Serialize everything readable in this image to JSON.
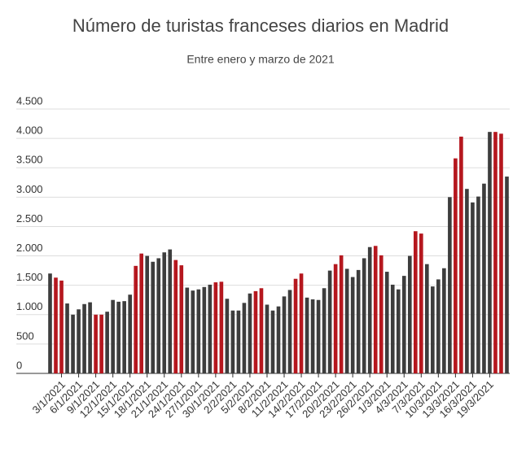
{
  "chart_data": {
    "type": "bar",
    "title": "Número de turistas franceses diarios en Madrid",
    "subtitle": "Entre enero y marzo de 2021",
    "categories": [
      null,
      null,
      "3/1/2021",
      null,
      null,
      "6/1/2021",
      null,
      null,
      "9/1/2021",
      null,
      null,
      "12/1/2021",
      null,
      null,
      "15/1/2021",
      null,
      null,
      "18/1/2021",
      null,
      null,
      "21/1/2021",
      null,
      null,
      "24/1/2021",
      null,
      null,
      "27/1/2021",
      null,
      null,
      "30/1/2021",
      null,
      null,
      "2/2/2021",
      null,
      null,
      "5/2/2021",
      null,
      null,
      "8/2/2021",
      null,
      null,
      "11/2/2021",
      null,
      null,
      "14/2/2021",
      null,
      null,
      "17/2/2021",
      null,
      null,
      "20/2/2021",
      null,
      null,
      "23/2/2021",
      null,
      null,
      "26/2/2021",
      null,
      null,
      "1/3/2021",
      null,
      null,
      "4/3/2021",
      null,
      null,
      "7/3/2021",
      null,
      null,
      "10/3/2021",
      null,
      null,
      "13/3/2021",
      null,
      null,
      "16/3/2021",
      null,
      null,
      "19/3/2021",
      null,
      null,
      null
    ],
    "values": [
      1700,
      1630,
      1580,
      1190,
      1000,
      1090,
      1180,
      1210,
      1000,
      1000,
      1050,
      1250,
      1220,
      1230,
      1340,
      1830,
      2040,
      2000,
      1900,
      1960,
      2060,
      2110,
      1930,
      1840,
      1460,
      1410,
      1430,
      1470,
      1510,
      1550,
      1560,
      1270,
      1070,
      1070,
      1200,
      1360,
      1400,
      1450,
      1170,
      1070,
      1140,
      1310,
      1420,
      1610,
      1700,
      1290,
      1260,
      1250,
      1450,
      1750,
      1860,
      2010,
      1780,
      1640,
      1760,
      1960,
      2150,
      2170,
      2010,
      1730,
      1510,
      1430,
      1660,
      2000,
      2420,
      2380,
      1860,
      1480,
      1600,
      1790,
      3000,
      3660,
      4030,
      3140,
      2910,
      3010,
      3230,
      4110,
      4110,
      4080,
      3350
    ],
    "colors": [
      "#3d3d3d",
      "#b5171e",
      "#b5171e",
      "#3d3d3d",
      "#3d3d3d",
      "#3d3d3d",
      "#3d3d3d",
      "#3d3d3d",
      "#b5171e",
      "#b5171e",
      "#3d3d3d",
      "#3d3d3d",
      "#3d3d3d",
      "#3d3d3d",
      "#3d3d3d",
      "#b5171e",
      "#b5171e",
      "#3d3d3d",
      "#3d3d3d",
      "#3d3d3d",
      "#3d3d3d",
      "#3d3d3d",
      "#b5171e",
      "#b5171e",
      "#3d3d3d",
      "#3d3d3d",
      "#3d3d3d",
      "#3d3d3d",
      "#3d3d3d",
      "#b5171e",
      "#b5171e",
      "#3d3d3d",
      "#3d3d3d",
      "#3d3d3d",
      "#3d3d3d",
      "#3d3d3d",
      "#b5171e",
      "#b5171e",
      "#3d3d3d",
      "#3d3d3d",
      "#3d3d3d",
      "#3d3d3d",
      "#3d3d3d",
      "#b5171e",
      "#b5171e",
      "#3d3d3d",
      "#3d3d3d",
      "#3d3d3d",
      "#3d3d3d",
      "#3d3d3d",
      "#b5171e",
      "#b5171e",
      "#3d3d3d",
      "#3d3d3d",
      "#3d3d3d",
      "#3d3d3d",
      "#3d3d3d",
      "#b5171e",
      "#b5171e",
      "#3d3d3d",
      "#3d3d3d",
      "#3d3d3d",
      "#3d3d3d",
      "#3d3d3d",
      "#b5171e",
      "#b5171e",
      "#3d3d3d",
      "#3d3d3d",
      "#3d3d3d",
      "#3d3d3d",
      "#3d3d3d",
      "#b5171e",
      "#b5171e",
      "#3d3d3d",
      "#3d3d3d",
      "#3d3d3d",
      "#3d3d3d",
      "#3d3d3d",
      "#b5171e",
      "#b5171e",
      "#3d3d3d"
    ],
    "ylim": [
      0,
      4500
    ],
    "yticks": [
      0,
      500,
      {
        "value": 1000,
        "label": "1.000"
      },
      {
        "value": 1500,
        "label": "1.500"
      },
      {
        "value": 2000,
        "label": "2.000"
      },
      {
        "value": 2500,
        "label": "2.500"
      },
      {
        "value": 3000,
        "label": "3.000"
      },
      {
        "value": 3500,
        "label": "3.500"
      },
      {
        "value": 4000,
        "label": "4.000"
      },
      {
        "value": 4500,
        "label": "4.500"
      }
    ],
    "grid": true
  }
}
